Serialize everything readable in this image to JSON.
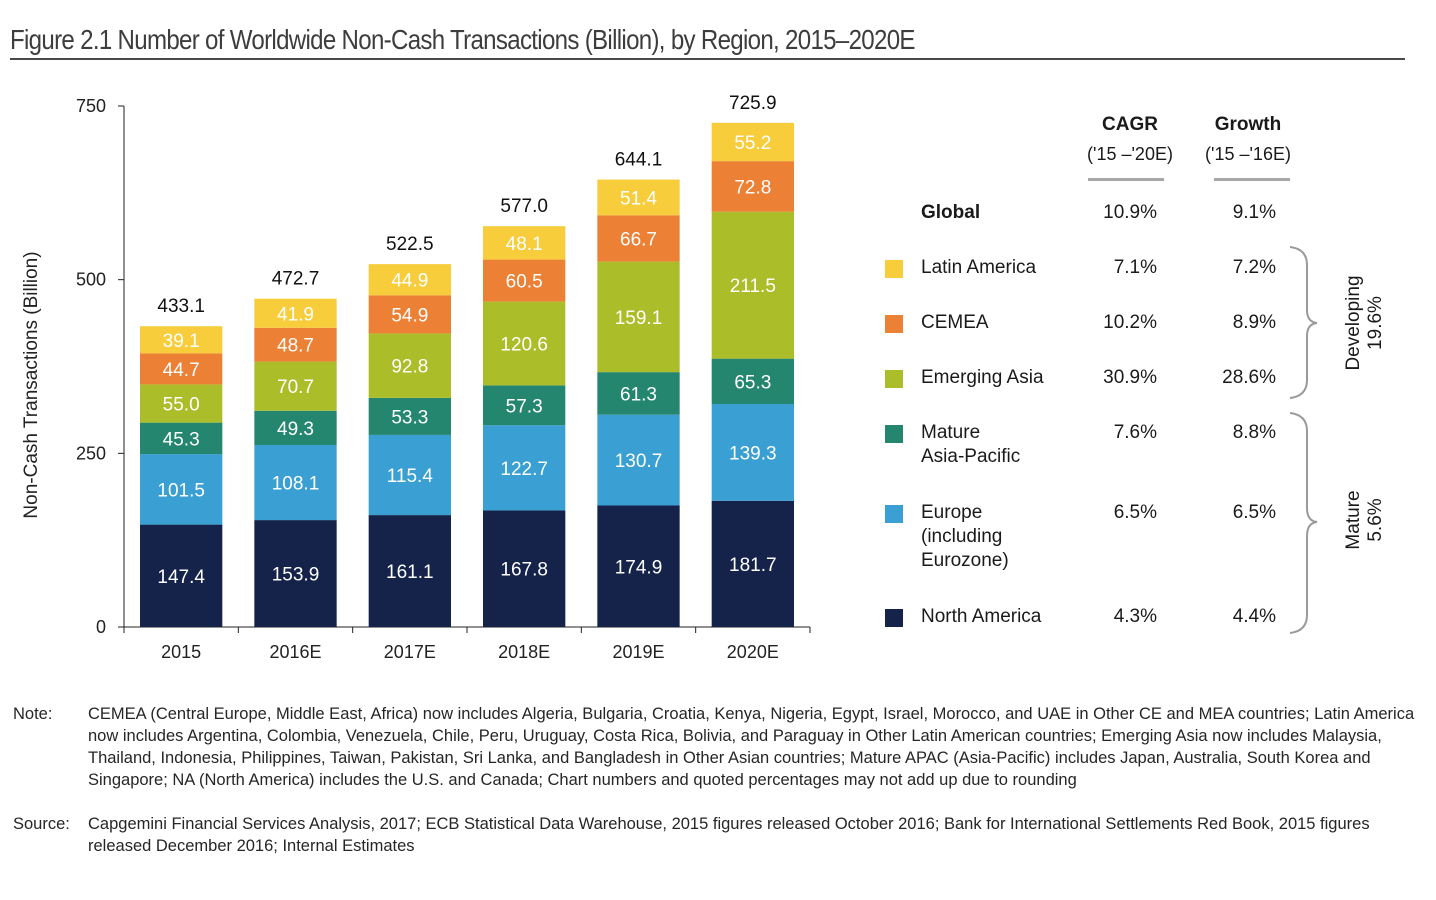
{
  "figure": {
    "title": "Figure 2.1 Number of Worldwide Non-Cash Transactions (Billion), by Region, 2015–2020E"
  },
  "chart_data": {
    "type": "bar",
    "stacked": true,
    "title": "Figure 2.1 Number of Worldwide Non-Cash Transactions (Billion), by Region, 2015–2020E",
    "xlabel": "",
    "ylabel": "Non-Cash Transactions (Billion)",
    "ylim": [
      0,
      750
    ],
    "yticks": [
      0,
      250,
      500,
      750
    ],
    "grid": false,
    "categories": [
      "2015",
      "2016E",
      "2017E",
      "2018E",
      "2019E",
      "2020E"
    ],
    "totals": [
      "433.1",
      "472.7",
      "522.5",
      "577.0",
      "644.1",
      "725.9"
    ],
    "series": [
      {
        "name": "North America",
        "color": "#15234b",
        "values": [
          147.4,
          153.9,
          161.1,
          167.8,
          174.9,
          181.7
        ]
      },
      {
        "name": "Europe (including Eurozone)",
        "color": "#3a9fd3",
        "values": [
          101.5,
          108.1,
          115.4,
          122.7,
          130.7,
          139.3
        ]
      },
      {
        "name": "Mature Asia-Pacific",
        "color": "#25866f",
        "values": [
          45.3,
          49.3,
          53.3,
          57.3,
          61.3,
          65.3
        ]
      },
      {
        "name": "Emerging Asia",
        "color": "#acbd2a",
        "values": [
          55.0,
          70.7,
          92.8,
          120.6,
          159.1,
          211.5
        ]
      },
      {
        "name": "CEMEA",
        "color": "#ec8035",
        "values": [
          44.7,
          48.7,
          54.9,
          60.5,
          66.7,
          72.8
        ]
      },
      {
        "name": "Latin America",
        "color": "#f7cd3c",
        "values": [
          39.1,
          41.9,
          44.9,
          48.1,
          51.4,
          55.2
        ]
      }
    ],
    "legend_position": "right"
  },
  "legend_table": {
    "headers": [
      {
        "title": "CAGR",
        "sub": "('15 –'20E)"
      },
      {
        "title": "Growth",
        "sub": "('15 –'16E)"
      }
    ],
    "global": {
      "name": "Global",
      "cagr": "10.9%",
      "growth": "9.1%"
    },
    "rows": [
      {
        "name_lines": [
          "Latin America"
        ],
        "color": "#f7cd3c",
        "cagr": "7.1%",
        "growth": "7.2%"
      },
      {
        "name_lines": [
          "CEMEA"
        ],
        "color": "#ec8035",
        "cagr": "10.2%",
        "growth": "8.9%"
      },
      {
        "name_lines": [
          "Emerging Asia"
        ],
        "color": "#acbd2a",
        "cagr": "30.9%",
        "growth": "28.6%"
      },
      {
        "name_lines": [
          "Mature",
          "Asia-Pacific"
        ],
        "color": "#25866f",
        "cagr": "7.6%",
        "growth": "8.8%"
      },
      {
        "name_lines": [
          "Europe",
          "(including",
          "Eurozone)"
        ],
        "color": "#3a9fd3",
        "cagr": "6.5%",
        "growth": "6.5%"
      },
      {
        "name_lines": [
          "North America"
        ],
        "color": "#15234b",
        "cagr": "4.3%",
        "growth": "4.4%"
      }
    ],
    "groups": [
      {
        "name": "Developing",
        "value": "19.6%"
      },
      {
        "name": "Mature",
        "value": "5.6%"
      }
    ]
  },
  "notes": {
    "note_label": "Note:",
    "note_text": "CEMEA (Central Europe, Middle East, Africa) now includes Algeria, Bulgaria, Croatia, Kenya, Nigeria, Egypt, Israel, Morocco, and UAE in Other CE and MEA countries; Latin America now includes Argentina, Colombia, Venezuela, Chile, Peru, Uruguay, Costa Rica, Bolivia, and Paraguay in Other Latin American countries; Emerging Asia now includes Malaysia, Thailand, Indonesia, Philippines, Taiwan, Pakistan, Sri Lanka, and Bangladesh in Other Asian countries; Mature APAC (Asia-Pacific) includes Japan, Australia, South Korea and Singapore; NA (North America) includes the U.S. and Canada; Chart numbers and quoted percentages may not add up due to rounding",
    "source_label": "Source:",
    "source_text": "Capgemini Financial Services Analysis, 2017; ECB Statistical Data Warehouse, 2015 figures released October 2016; Bank for International Settlements Red Book, 2015 figures released December 2016; Internal Estimates"
  }
}
